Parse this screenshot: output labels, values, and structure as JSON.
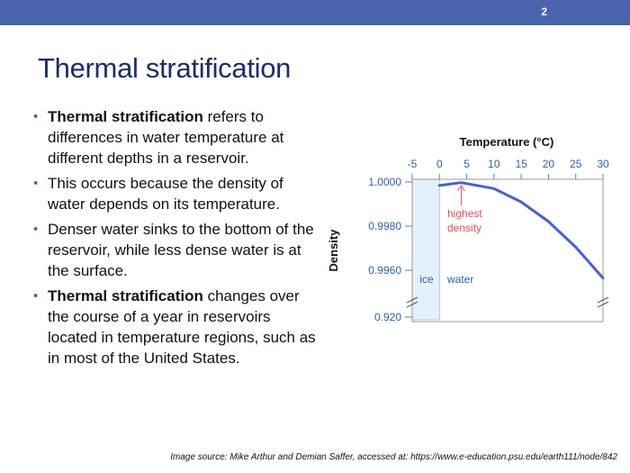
{
  "slide": {
    "number": "2",
    "title": "Thermal stratification"
  },
  "colors": {
    "topbar": "#4a63ae",
    "title": "#1c2b6b",
    "curve": "#4a5fd4",
    "annotation": "#e0505a",
    "axis_text": "#2d5fa8"
  },
  "bullets": [
    {
      "bold": "Thermal stratification",
      "text": " refers to differences in water temperature at different depths in a reservoir."
    },
    {
      "bold": "",
      "text": "This occurs because the density of water depends on its temperature."
    },
    {
      "bold": "",
      "text": "Denser water sinks to the bottom of the reservoir, while less dense water is at the surface."
    },
    {
      "bold": "Thermal stratification",
      "text": " changes over the course of a year in reservoirs located in temperature regions, such as in most of the United States."
    }
  ],
  "chart_data": {
    "type": "line",
    "xlabel": "Temperature (°C)",
    "ylabel": "Density",
    "x_ticks": [
      "-5",
      "0",
      "5",
      "10",
      "15",
      "20",
      "25",
      "30"
    ],
    "y_ticks": [
      "1.0000",
      "0.9980",
      "0.9960",
      "0.920"
    ],
    "xlim": [
      -5,
      30
    ],
    "series": [
      {
        "x": [
          0,
          4,
          10,
          15,
          20,
          25,
          30
        ],
        "y": [
          0.99984,
          0.99997,
          0.9997,
          0.9991,
          0.99821,
          0.99705,
          0.99565
        ]
      }
    ],
    "annotations": {
      "peak": "highest\ndensity",
      "ice": "ice",
      "water": "water"
    }
  },
  "source": "Image source: Mike Arthur and Demian Saffer, accessed at: https://www.e-education.psu.edu/earth111/node/842"
}
